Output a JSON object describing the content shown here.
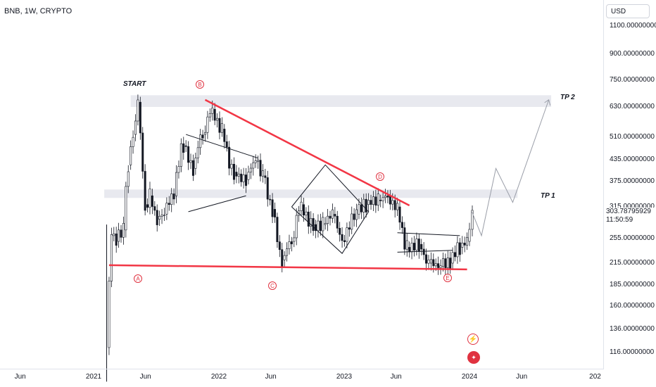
{
  "header": {
    "symbol": "BNB, 1W, CRYPTO",
    "currency": "USD"
  },
  "price_label": {
    "price": "303.78795929",
    "countdown": "11:50:59"
  },
  "annotations": {
    "start": "START",
    "tp1": "TP 1",
    "tp2": "TP 2",
    "points": [
      "A",
      "B",
      "C",
      "D",
      "E"
    ]
  },
  "icons": {
    "bolt": "lightning-icon",
    "flag": "us-flag-icon"
  },
  "colors": {
    "up": "#089981",
    "down": "#f23645",
    "candle": "#131722",
    "trendline": "#f23645",
    "zone": "#e8e9ef",
    "path": "#9a9ea8"
  },
  "chart_data": {
    "type": "candlestick",
    "title": "BNB, 1W, CRYPTO",
    "y_axis_ticks": [
      1100,
      900,
      750,
      630,
      510,
      435,
      375,
      315,
      255,
      215,
      185,
      160,
      136,
      116
    ],
    "y_axis_labels": [
      "1100.00000000",
      "900.00000000",
      "750.00000000",
      "630.00000000",
      "510.00000000",
      "435.00000000",
      "375.00000000",
      "315.00000000",
      "255.00000000",
      "215.00000000",
      "185.00000000",
      "160.00000000",
      "136.00000000",
      "116.00000000"
    ],
    "x_axis_labels": [
      "Jun",
      "2021",
      "Jun",
      "2022",
      "Jun",
      "2023",
      "Jun",
      "2024",
      "Jun",
      "202"
    ],
    "last_price": 303.78795929,
    "zones": [
      {
        "name": "TP 2",
        "from": 630,
        "to": 680
      },
      {
        "name": "TP 1",
        "from": 335,
        "to": 355
      }
    ],
    "trendlines": [
      {
        "name": "resistance",
        "from": {
          "date": "2021-11-22",
          "price": 660
        },
        "to": {
          "date": "2023-07-10",
          "price": 318
        }
      },
      {
        "name": "support",
        "from": {
          "date": "2021-02-15",
          "price": 212
        },
        "to": {
          "date": "2023-12-25",
          "price": 206
        }
      }
    ],
    "points": [
      {
        "label": "A",
        "date": "2021-05-03",
        "price": 190
      },
      {
        "label": "B",
        "date": "2021-11-22",
        "price": 700
      },
      {
        "label": "C",
        "date": "2022-06-13",
        "price": 180
      },
      {
        "label": "D",
        "date": "2023-04-17",
        "price": 385
      },
      {
        "label": "E",
        "date": "2023-10-30",
        "price": 190
      }
    ],
    "projection": [
      {
        "date": "2024-01-08",
        "price": 305
      },
      {
        "date": "2024-02-05",
        "price": 260
      },
      {
        "date": "2024-03-18",
        "price": 410
      },
      {
        "date": "2024-05-06",
        "price": 325
      },
      {
        "date": "2024-08-19",
        "price": 660
      }
    ],
    "candles_weekly_close": [
      {
        "date": "2021-02-15",
        "close": 260
      },
      {
        "date": "2021-03-01",
        "close": 250
      },
      {
        "date": "2021-03-15",
        "close": 270
      },
      {
        "date": "2021-04-05",
        "close": 420
      },
      {
        "date": "2021-04-19",
        "close": 520
      },
      {
        "date": "2021-05-03",
        "close": 650
      },
      {
        "date": "2021-05-17",
        "close": 320
      },
      {
        "date": "2021-06-07",
        "close": 340
      },
      {
        "date": "2021-06-21",
        "close": 290
      },
      {
        "date": "2021-07-12",
        "close": 300
      },
      {
        "date": "2021-08-02",
        "close": 340
      },
      {
        "date": "2021-08-30",
        "close": 480
      },
      {
        "date": "2021-09-27",
        "close": 410
      },
      {
        "date": "2021-10-25",
        "close": 520
      },
      {
        "date": "2021-11-22",
        "close": 620
      },
      {
        "date": "2021-12-20",
        "close": 540
      },
      {
        "date": "2022-01-17",
        "close": 400
      },
      {
        "date": "2022-02-21",
        "close": 380
      },
      {
        "date": "2022-03-28",
        "close": 430
      },
      {
        "date": "2022-04-25",
        "close": 390
      },
      {
        "date": "2022-05-16",
        "close": 310
      },
      {
        "date": "2022-06-13",
        "close": 220
      },
      {
        "date": "2022-07-11",
        "close": 250
      },
      {
        "date": "2022-08-08",
        "close": 320
      },
      {
        "date": "2022-09-05",
        "close": 280
      },
      {
        "date": "2022-10-10",
        "close": 280
      },
      {
        "date": "2022-11-07",
        "close": 300
      },
      {
        "date": "2022-12-05",
        "close": 250
      },
      {
        "date": "2023-01-09",
        "close": 300
      },
      {
        "date": "2023-02-13",
        "close": 320
      },
      {
        "date": "2023-03-13",
        "close": 330
      },
      {
        "date": "2023-04-17",
        "close": 340
      },
      {
        "date": "2023-05-15",
        "close": 315
      },
      {
        "date": "2023-06-12",
        "close": 240
      },
      {
        "date": "2023-07-10",
        "close": 245
      },
      {
        "date": "2023-08-14",
        "close": 215
      },
      {
        "date": "2023-09-11",
        "close": 210
      },
      {
        "date": "2023-10-16",
        "close": 215
      },
      {
        "date": "2023-11-13",
        "close": 240
      },
      {
        "date": "2023-12-11",
        "close": 250
      },
      {
        "date": "2024-01-01",
        "close": 304
      }
    ]
  }
}
